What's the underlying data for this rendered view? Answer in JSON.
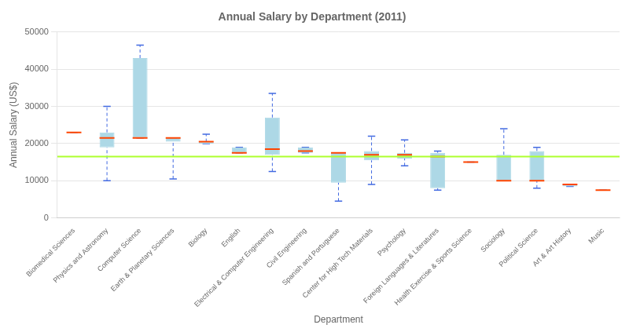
{
  "chart_data": {
    "type": "box",
    "title": "Annual Salary by Department (2011)",
    "xlabel": "Department",
    "ylabel": "Annual Salary (US$)",
    "ylim": [
      0,
      50000
    ],
    "yticks": [
      0,
      10000,
      20000,
      30000,
      40000,
      50000
    ],
    "grid": true,
    "categories": [
      "Biomedical Sciences",
      "Physics and Astronomy",
      "Computer Science",
      "Earth & Planetary Sciences",
      "Biology",
      "English",
      "Electrical & Computer Engineering",
      "Civil Engineering",
      "Spanish and Portuguese",
      "Center for High Tech Materials",
      "Psychology",
      "Foreign Languages & Literatures",
      "Health Exercise & Sports Science",
      "Sociology",
      "Political Science",
      "Art & Art History",
      "Music"
    ],
    "quartiles": {
      "q1": [
        23000,
        19000,
        21500,
        20500,
        20000,
        17500,
        17000,
        17500,
        9500,
        15500,
        16000,
        8000,
        15000,
        10000,
        10000,
        8500,
        7500
      ],
      "q3": [
        23000,
        23000,
        43000,
        21500,
        20500,
        19000,
        27000,
        19000,
        17500,
        18000,
        17500,
        17500,
        15000,
        17000,
        18000,
        9000,
        7500
      ],
      "color": "#add8e6"
    },
    "medians": {
      "values": [
        23000,
        21500,
        21500,
        21500,
        20500,
        17500,
        18500,
        18000,
        17500,
        17000,
        17000,
        16500,
        15000,
        10000,
        10000,
        9000,
        7500
      ],
      "color": "#ff4500"
    },
    "whiskers": {
      "low": [
        23000,
        10000,
        21500,
        10500,
        20000,
        17500,
        12500,
        17500,
        4500,
        9000,
        14000,
        7500,
        15000,
        10000,
        8000,
        8500,
        7500
      ],
      "high": [
        23000,
        30000,
        46500,
        21500,
        22500,
        19000,
        33500,
        19000,
        17500,
        22000,
        21000,
        18000,
        15000,
        24000,
        19000,
        9000,
        7500
      ],
      "color": "#4169e1",
      "line_style": "dashed"
    },
    "reference_line": {
      "value": 16500,
      "color": "#adff2f"
    }
  }
}
